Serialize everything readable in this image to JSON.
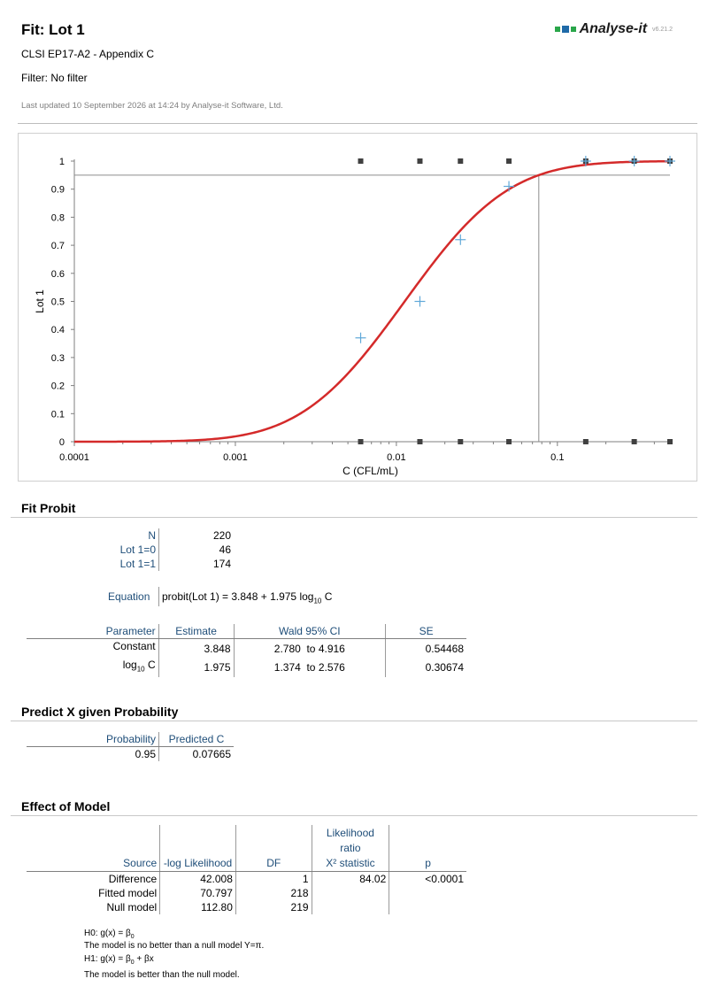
{
  "header": {
    "title": "Fit: Lot 1",
    "subtitle1": "CLSI EP17-A2 - Appendix C",
    "subtitle2": "Filter: No filter",
    "updated": "Last updated 10 September 2026 at 14:24 by Analyse-it Software, Ltd.",
    "brand": "Analyse-it",
    "version": "v6.21.2"
  },
  "colors": {
    "curve": "#d42a2a",
    "points": "#5fa8d8",
    "observed": "#404040",
    "axis": "#7f7f7f",
    "header_text": "#1f4e79"
  },
  "chart_data": {
    "type": "scatter",
    "xlabel": "C (CFL/mL)",
    "ylabel": "Lot 1",
    "x_scale": "log",
    "xlim": [
      0.0001,
      0.5
    ],
    "ylim": [
      0,
      1
    ],
    "x_ticks": [
      "0.0001",
      "0.001",
      "0.01",
      "0.1"
    ],
    "y_ticks": [
      "0",
      "0.1",
      "0.2",
      "0.3",
      "0.4",
      "0.5",
      "0.6",
      "0.7",
      "0.8",
      "0.9",
      "1"
    ],
    "grid": false,
    "fitted_curve": {
      "model": "probit",
      "intercept": 3.848,
      "slope": 1.975
    },
    "proportions": [
      {
        "x": 0.006,
        "y": 0.37
      },
      {
        "x": 0.014,
        "y": 0.5
      },
      {
        "x": 0.025,
        "y": 0.72
      },
      {
        "x": 0.05,
        "y": 0.91
      },
      {
        "x": 0.15,
        "y": 1.0
      },
      {
        "x": 0.3,
        "y": 1.0
      },
      {
        "x": 0.5,
        "y": 1.0
      }
    ],
    "observed_x": [
      0.006,
      0.014,
      0.025,
      0.05,
      0.15,
      0.3,
      0.5
    ],
    "reference": {
      "probability": 0.95,
      "predicted_x": 0.07665
    }
  },
  "fit": {
    "section_title": "Fit Probit",
    "counts": [
      {
        "label": "N",
        "value": "220"
      },
      {
        "label": "Lot 1=0",
        "value": "46"
      },
      {
        "label": "Lot 1=1",
        "value": "174"
      }
    ],
    "equation_label": "Equation",
    "equation_pre": "probit(Lot 1) = 3.848 + 1.975 log",
    "equation_sub": "10",
    "equation_post": " C",
    "params_headers": {
      "parameter": "Parameter",
      "estimate": "Estimate",
      "ci": "Wald 95% CI",
      "se": "SE"
    },
    "params": [
      {
        "name": "Constant",
        "name_sub": "",
        "name_post": "",
        "estimate": "3.848",
        "ci_low": "2.780",
        "ci_to": "to",
        "ci_high": "4.916",
        "se": "0.54468"
      },
      {
        "name": "log",
        "name_sub": "10",
        "name_post": " C",
        "estimate": "1.975",
        "ci_low": "1.374",
        "ci_to": "to",
        "ci_high": "2.576",
        "se": "0.30674"
      }
    ]
  },
  "predict": {
    "section_title": "Predict X given Probability",
    "headers": {
      "probability": "Probability",
      "predicted": "Predicted C"
    },
    "row": {
      "probability": "0.95",
      "predicted": "0.07665"
    }
  },
  "effect": {
    "section_title": "Effect of Model",
    "headers": {
      "source": "Source",
      "loglik": "-log Likelihood",
      "df": "DF",
      "lr1": "Likelihood",
      "lr2": "ratio",
      "lr3": "X² statistic",
      "p": "p"
    },
    "rows": [
      {
        "source": "Difference",
        "loglik": "42.008",
        "df": "1",
        "lr": "84.02",
        "p": "<0.0001"
      },
      {
        "source": "Fitted model",
        "loglik": "70.797",
        "df": "218",
        "lr": "",
        "p": ""
      },
      {
        "source": "Null model",
        "loglik": "112.80",
        "df": "219",
        "lr": "",
        "p": ""
      }
    ],
    "notes": {
      "h0": "H0: g(x) = β",
      "h0_sub": "0",
      "h0_text": "The model is no better than a null model Y=π.",
      "h1": "H1: g(x) = β",
      "h1_sub": "0",
      "h1_rest": " + βx",
      "h1_text": "The model is better than the null model."
    }
  }
}
